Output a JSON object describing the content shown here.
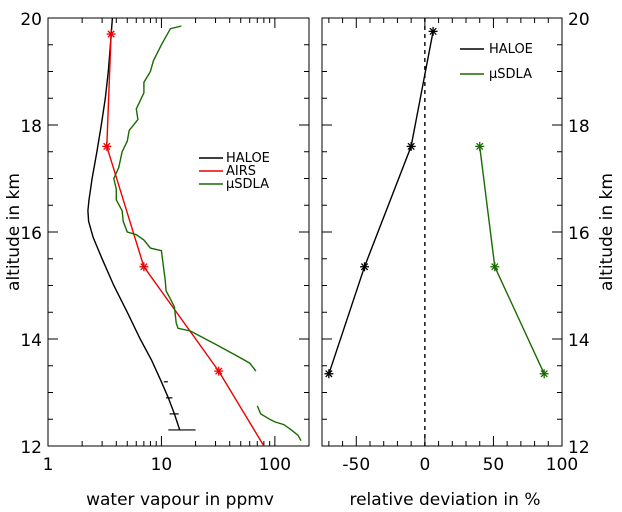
{
  "chart_data": [
    {
      "type": "line",
      "panel": "left",
      "xlabel": "water vapour in ppmv",
      "ylabel": "altitude in km",
      "xscale": "log",
      "xlim": [
        1,
        200
      ],
      "ylim": [
        12,
        20
      ],
      "xticks": [
        1,
        10,
        100
      ],
      "xtick_labels": [
        "1",
        "10",
        "100"
      ],
      "yticks": [
        12,
        14,
        16,
        18,
        20
      ],
      "ytick_labels": [
        "12",
        "14",
        "16",
        "18",
        "20"
      ],
      "ytick_side": "left",
      "legend_position": "center-right",
      "series": [
        {
          "name": "HALOE",
          "color": "#000000",
          "marker": "none",
          "points": [
            [
              3.7,
              20.0
            ],
            [
              3.55,
              19.5
            ],
            [
              3.4,
              19.0
            ],
            [
              3.2,
              18.5
            ],
            [
              2.95,
              18.0
            ],
            [
              2.7,
              17.5
            ],
            [
              2.45,
              17.0
            ],
            [
              2.3,
              16.6
            ],
            [
              2.25,
              16.4
            ],
            [
              2.28,
              16.2
            ],
            [
              2.5,
              15.9
            ],
            [
              3.0,
              15.5
            ],
            [
              3.8,
              15.0
            ],
            [
              5.0,
              14.5
            ],
            [
              6.5,
              14.0
            ],
            [
              8.2,
              13.6
            ],
            [
              10.0,
              13.2
            ],
            [
              11.5,
              12.9
            ],
            [
              13.0,
              12.6
            ],
            [
              14.5,
              12.3
            ]
          ],
          "error_bars": [
            {
              "y": 13.2,
              "x_low": 10.5,
              "x_high": 11.4
            },
            {
              "y": 12.9,
              "x_low": 11.0,
              "x_high": 12.5
            },
            {
              "y": 12.6,
              "x_low": 11.8,
              "x_high": 14.2
            },
            {
              "y": 12.3,
              "x_low": 11.5,
              "x_high": 20.0
            }
          ]
        },
        {
          "name": "AIRS",
          "color": "#ee0000",
          "marker": "asterisk",
          "points": [
            [
              3.6,
              19.7
            ],
            [
              3.3,
              17.6
            ],
            [
              7.0,
              15.35
            ],
            [
              32.0,
              13.4
            ],
            [
              80.0,
              12.0
            ]
          ],
          "marked_points": [
            [
              3.6,
              19.7
            ],
            [
              3.3,
              17.6
            ],
            [
              7.0,
              15.35
            ],
            [
              32.0,
              13.4
            ]
          ]
        },
        {
          "name": "μSDLA",
          "color": "#1a6a00",
          "marker": "none",
          "segments": [
            [
              [
                15.0,
                19.85
              ],
              [
                12.0,
                19.8
              ],
              [
                10.0,
                19.5
              ],
              [
                8.5,
                19.2
              ],
              [
                8.0,
                19.0
              ],
              [
                7.0,
                18.8
              ],
              [
                7.0,
                18.6
              ],
              [
                6.0,
                18.3
              ],
              [
                6.2,
                18.1
              ],
              [
                5.2,
                17.9
              ],
              [
                5.0,
                17.7
              ],
              [
                4.5,
                17.5
              ],
              [
                4.2,
                17.2
              ],
              [
                3.8,
                17.0
              ],
              [
                4.0,
                16.8
              ],
              [
                4.0,
                16.6
              ],
              [
                4.5,
                16.4
              ],
              [
                4.6,
                16.2
              ],
              [
                5.0,
                16.0
              ],
              [
                6.0,
                15.95
              ],
              [
                7.0,
                15.85
              ],
              [
                8.0,
                15.7
              ],
              [
                10.0,
                15.65
              ],
              [
                10.5,
                15.3
              ],
              [
                10.8,
                15.1
              ],
              [
                11.0,
                14.9
              ],
              [
                12.0,
                14.75
              ],
              [
                13.0,
                14.6
              ],
              [
                13.5,
                14.3
              ],
              [
                14.0,
                14.2
              ],
              [
                18.0,
                14.15
              ],
              [
                22.0,
                14.05
              ],
              [
                30.0,
                13.9
              ],
              [
                45.0,
                13.7
              ],
              [
                60.0,
                13.55
              ],
              [
                68.0,
                13.4
              ]
            ],
            [
              [
                70.0,
                12.75
              ],
              [
                75.0,
                12.6
              ],
              [
                90.0,
                12.5
              ],
              [
                100.0,
                12.45
              ],
              [
                120.0,
                12.4
              ],
              [
                140.0,
                12.3
              ],
              [
                160.0,
                12.2
              ],
              [
                170.0,
                12.1
              ]
            ]
          ]
        }
      ]
    },
    {
      "type": "line",
      "panel": "right",
      "xlabel": "relative deviation in %",
      "ylabel": "altitude in km",
      "xlim": [
        -75,
        100
      ],
      "ylim": [
        12,
        20
      ],
      "xticks": [
        -50,
        0,
        50,
        100
      ],
      "xtick_labels": [
        "-50",
        "0",
        "50",
        "100"
      ],
      "yticks": [
        12,
        14,
        16,
        18,
        20
      ],
      "ytick_labels": [
        "12",
        "14",
        "16",
        "18",
        "20"
      ],
      "ytick_side": "right",
      "reference_line_x": 0,
      "legend_position": "top-right",
      "series": [
        {
          "name": "HALOE",
          "color": "#000000",
          "marker": "asterisk",
          "points": [
            [
              6.0,
              19.75
            ],
            [
              -10.0,
              17.6
            ],
            [
              -44.0,
              15.35
            ],
            [
              -70.0,
              13.35
            ]
          ]
        },
        {
          "name": "μSDLA",
          "color": "#1a6a00",
          "marker": "asterisk",
          "points": [
            [
              40.0,
              17.6
            ],
            [
              51.0,
              15.35
            ],
            [
              87.0,
              13.35
            ]
          ]
        }
      ]
    }
  ]
}
